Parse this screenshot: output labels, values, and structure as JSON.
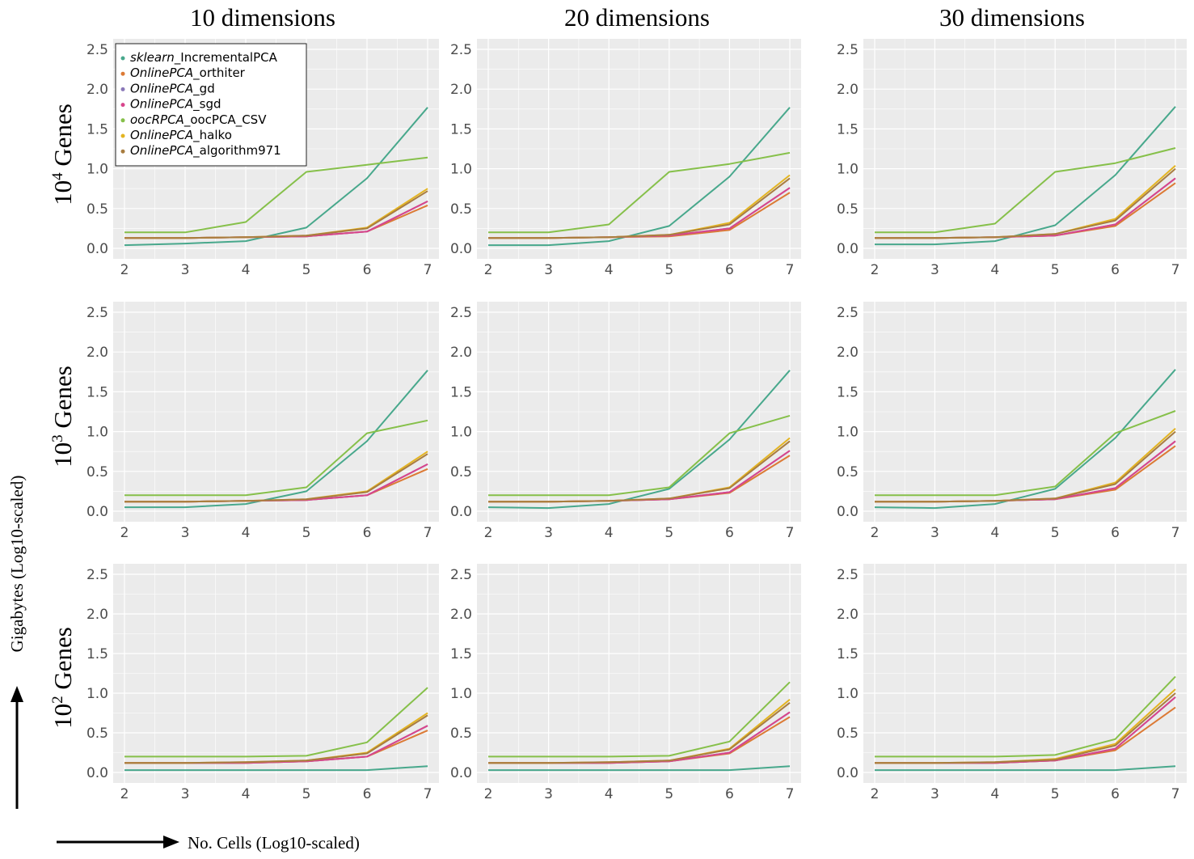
{
  "figure": {
    "col_titles": [
      "10 dimensions",
      "20 dimensions",
      "30 dimensions"
    ],
    "row_titles": [
      {
        "base": "10",
        "exp": "4",
        "rest": " Genes"
      },
      {
        "base": "10",
        "exp": "3",
        "rest": " Genes"
      },
      {
        "base": "10",
        "exp": "2",
        "rest": " Genes"
      }
    ],
    "ylabel": "Gigabytes (Log10-scaled)",
    "xlabel": "No. Cells (Log10-scaled)",
    "panel_bg": "#ebebeb",
    "grid_color": "#ffffff"
  },
  "chart_data": {
    "type": "line",
    "xlabel": "No. Cells (Log10-scaled)",
    "ylabel": "Gigabytes (Log10-scaled)",
    "x": [
      2,
      3,
      4,
      5,
      6,
      7
    ],
    "xticks": [
      "2",
      "3",
      "4",
      "5",
      "6",
      "7"
    ],
    "yticks": [
      "0.0",
      "0.5",
      "1.0",
      "1.5",
      "2.0",
      "2.5"
    ],
    "ylim": [
      0,
      2.5
    ],
    "grid": true,
    "legend_position": "top-left (first panel)",
    "legend": [
      {
        "italic": "sklearn",
        "rest": "_IncrementalPCA",
        "color": "#48a88c"
      },
      {
        "italic": "OnlinePCA",
        "rest": "_orthiter",
        "color": "#dc7a35"
      },
      {
        "italic": "OnlinePCA",
        "rest": "_gd",
        "color": "#8a78b8"
      },
      {
        "italic": "OnlinePCA",
        "rest": "_sgd",
        "color": "#d8458c"
      },
      {
        "italic": "oocRPCA",
        "rest": "_oocPCA_CSV",
        "color": "#86c04a"
      },
      {
        "italic": "OnlinePCA",
        "rest": "_halko",
        "color": "#e3b421"
      },
      {
        "italic": "OnlinePCA",
        "rest": "_algorithm971",
        "color": "#a87d40"
      }
    ],
    "panels": [
      {
        "row": "10^4 Genes",
        "col": "10 dimensions",
        "series": [
          {
            "name": "sklearn_IncrementalPCA",
            "values": [
              0.04,
              0.06,
              0.09,
              0.26,
              0.88,
              1.77
            ]
          },
          {
            "name": "OnlinePCA_orthiter",
            "values": [
              0.13,
              0.13,
              0.14,
              0.15,
              0.21,
              0.54
            ]
          },
          {
            "name": "OnlinePCA_gd",
            "values": [
              0.13,
              0.13,
              0.14,
              0.15,
              0.21,
              0.59
            ]
          },
          {
            "name": "OnlinePCA_sgd",
            "values": [
              0.13,
              0.13,
              0.14,
              0.15,
              0.21,
              0.59
            ]
          },
          {
            "name": "oocRPCA_oocPCA_CSV",
            "values": [
              0.2,
              0.2,
              0.33,
              0.96,
              1.05,
              1.14
            ]
          },
          {
            "name": "OnlinePCA_halko",
            "values": [
              0.13,
              0.13,
              0.14,
              0.16,
              0.26,
              0.75
            ]
          },
          {
            "name": "OnlinePCA_algorithm971",
            "values": [
              0.13,
              0.13,
              0.14,
              0.16,
              0.25,
              0.72
            ]
          }
        ]
      },
      {
        "row": "10^4 Genes",
        "col": "20 dimensions",
        "series": [
          {
            "name": "sklearn_IncrementalPCA",
            "values": [
              0.04,
              0.04,
              0.09,
              0.28,
              0.9,
              1.77
            ]
          },
          {
            "name": "OnlinePCA_orthiter",
            "values": [
              0.13,
              0.13,
              0.14,
              0.15,
              0.23,
              0.7
            ]
          },
          {
            "name": "OnlinePCA_gd",
            "values": [
              0.13,
              0.13,
              0.14,
              0.16,
              0.25,
              0.76
            ]
          },
          {
            "name": "OnlinePCA_sgd",
            "values": [
              0.13,
              0.13,
              0.14,
              0.16,
              0.25,
              0.76
            ]
          },
          {
            "name": "oocRPCA_oocPCA_CSV",
            "values": [
              0.2,
              0.2,
              0.3,
              0.96,
              1.06,
              1.2
            ]
          },
          {
            "name": "OnlinePCA_halko",
            "values": [
              0.13,
              0.13,
              0.14,
              0.17,
              0.32,
              0.92
            ]
          },
          {
            "name": "OnlinePCA_algorithm971",
            "values": [
              0.13,
              0.13,
              0.14,
              0.17,
              0.3,
              0.88
            ]
          }
        ]
      },
      {
        "row": "10^4 Genes",
        "col": "30 dimensions",
        "series": [
          {
            "name": "sklearn_IncrementalPCA",
            "values": [
              0.05,
              0.05,
              0.09,
              0.29,
              0.92,
              1.78
            ]
          },
          {
            "name": "OnlinePCA_orthiter",
            "values": [
              0.13,
              0.13,
              0.14,
              0.16,
              0.28,
              0.82
            ]
          },
          {
            "name": "OnlinePCA_gd",
            "values": [
              0.13,
              0.13,
              0.14,
              0.16,
              0.3,
              0.88
            ]
          },
          {
            "name": "OnlinePCA_sgd",
            "values": [
              0.13,
              0.13,
              0.14,
              0.16,
              0.3,
              0.88
            ]
          },
          {
            "name": "oocRPCA_oocPCA_CSV",
            "values": [
              0.2,
              0.2,
              0.31,
              0.96,
              1.07,
              1.26
            ]
          },
          {
            "name": "OnlinePCA_halko",
            "values": [
              0.13,
              0.13,
              0.14,
              0.18,
              0.37,
              1.04
            ]
          },
          {
            "name": "OnlinePCA_algorithm971",
            "values": [
              0.13,
              0.13,
              0.14,
              0.18,
              0.35,
              1.0
            ]
          }
        ]
      },
      {
        "row": "10^3 Genes",
        "col": "10 dimensions",
        "series": [
          {
            "name": "sklearn_IncrementalPCA",
            "values": [
              0.05,
              0.05,
              0.09,
              0.25,
              0.88,
              1.77
            ]
          },
          {
            "name": "OnlinePCA_orthiter",
            "values": [
              0.12,
              0.12,
              0.13,
              0.14,
              0.2,
              0.53
            ]
          },
          {
            "name": "OnlinePCA_gd",
            "values": [
              0.12,
              0.12,
              0.13,
              0.14,
              0.2,
              0.59
            ]
          },
          {
            "name": "OnlinePCA_sgd",
            "values": [
              0.12,
              0.12,
              0.13,
              0.14,
              0.2,
              0.59
            ]
          },
          {
            "name": "oocRPCA_oocPCA_CSV",
            "values": [
              0.2,
              0.2,
              0.2,
              0.3,
              0.98,
              1.14
            ]
          },
          {
            "name": "OnlinePCA_halko",
            "values": [
              0.12,
              0.12,
              0.13,
              0.15,
              0.25,
              0.75
            ]
          },
          {
            "name": "OnlinePCA_algorithm971",
            "values": [
              0.12,
              0.12,
              0.13,
              0.15,
              0.24,
              0.72
            ]
          }
        ]
      },
      {
        "row": "10^3 Genes",
        "col": "20 dimensions",
        "series": [
          {
            "name": "sklearn_IncrementalPCA",
            "values": [
              0.05,
              0.04,
              0.09,
              0.28,
              0.9,
              1.77
            ]
          },
          {
            "name": "OnlinePCA_orthiter",
            "values": [
              0.12,
              0.12,
              0.13,
              0.15,
              0.23,
              0.7
            ]
          },
          {
            "name": "OnlinePCA_gd",
            "values": [
              0.12,
              0.12,
              0.13,
              0.15,
              0.24,
              0.76
            ]
          },
          {
            "name": "OnlinePCA_sgd",
            "values": [
              0.12,
              0.12,
              0.13,
              0.15,
              0.24,
              0.76
            ]
          },
          {
            "name": "oocRPCA_oocPCA_CSV",
            "values": [
              0.2,
              0.2,
              0.2,
              0.3,
              0.98,
              1.2
            ]
          },
          {
            "name": "OnlinePCA_halko",
            "values": [
              0.12,
              0.12,
              0.13,
              0.16,
              0.3,
              0.92
            ]
          },
          {
            "name": "OnlinePCA_algorithm971",
            "values": [
              0.12,
              0.12,
              0.13,
              0.16,
              0.29,
              0.88
            ]
          }
        ]
      },
      {
        "row": "10^3 Genes",
        "col": "30 dimensions",
        "series": [
          {
            "name": "sklearn_IncrementalPCA",
            "values": [
              0.05,
              0.04,
              0.09,
              0.28,
              0.92,
              1.78
            ]
          },
          {
            "name": "OnlinePCA_orthiter",
            "values": [
              0.12,
              0.12,
              0.13,
              0.15,
              0.27,
              0.82
            ]
          },
          {
            "name": "OnlinePCA_gd",
            "values": [
              0.12,
              0.12,
              0.13,
              0.15,
              0.29,
              0.88
            ]
          },
          {
            "name": "OnlinePCA_sgd",
            "values": [
              0.12,
              0.12,
              0.13,
              0.15,
              0.29,
              0.88
            ]
          },
          {
            "name": "oocRPCA_oocPCA_CSV",
            "values": [
              0.2,
              0.2,
              0.2,
              0.31,
              0.98,
              1.26
            ]
          },
          {
            "name": "OnlinePCA_halko",
            "values": [
              0.12,
              0.12,
              0.13,
              0.16,
              0.36,
              1.04
            ]
          },
          {
            "name": "OnlinePCA_algorithm971",
            "values": [
              0.12,
              0.12,
              0.13,
              0.16,
              0.34,
              1.0
            ]
          }
        ]
      },
      {
        "row": "10^2 Genes",
        "col": "10 dimensions",
        "series": [
          {
            "name": "sklearn_IncrementalPCA",
            "values": [
              0.03,
              0.03,
              0.03,
              0.03,
              0.03,
              0.08
            ]
          },
          {
            "name": "OnlinePCA_orthiter",
            "values": [
              0.12,
              0.12,
              0.12,
              0.14,
              0.2,
              0.53
            ]
          },
          {
            "name": "OnlinePCA_gd",
            "values": [
              0.12,
              0.12,
              0.12,
              0.14,
              0.2,
              0.59
            ]
          },
          {
            "name": "OnlinePCA_sgd",
            "values": [
              0.12,
              0.12,
              0.12,
              0.14,
              0.2,
              0.59
            ]
          },
          {
            "name": "oocRPCA_oocPCA_CSV",
            "values": [
              0.2,
              0.2,
              0.2,
              0.21,
              0.38,
              1.07
            ]
          },
          {
            "name": "OnlinePCA_halko",
            "values": [
              0.12,
              0.12,
              0.13,
              0.15,
              0.25,
              0.75
            ]
          },
          {
            "name": "OnlinePCA_algorithm971",
            "values": [
              0.12,
              0.12,
              0.13,
              0.15,
              0.24,
              0.72
            ]
          }
        ]
      },
      {
        "row": "10^2 Genes",
        "col": "20 dimensions",
        "series": [
          {
            "name": "sklearn_IncrementalPCA",
            "values": [
              0.03,
              0.03,
              0.03,
              0.03,
              0.03,
              0.08
            ]
          },
          {
            "name": "OnlinePCA_orthiter",
            "values": [
              0.12,
              0.12,
              0.12,
              0.14,
              0.24,
              0.7
            ]
          },
          {
            "name": "OnlinePCA_gd",
            "values": [
              0.12,
              0.12,
              0.12,
              0.14,
              0.25,
              0.76
            ]
          },
          {
            "name": "OnlinePCA_sgd",
            "values": [
              0.12,
              0.12,
              0.12,
              0.14,
              0.25,
              0.76
            ]
          },
          {
            "name": "oocRPCA_oocPCA_CSV",
            "values": [
              0.2,
              0.2,
              0.2,
              0.21,
              0.39,
              1.14
            ]
          },
          {
            "name": "OnlinePCA_halko",
            "values": [
              0.12,
              0.12,
              0.13,
              0.15,
              0.3,
              0.92
            ]
          },
          {
            "name": "OnlinePCA_algorithm971",
            "values": [
              0.12,
              0.12,
              0.13,
              0.15,
              0.29,
              0.88
            ]
          }
        ]
      },
      {
        "row": "10^2 Genes",
        "col": "30 dimensions",
        "series": [
          {
            "name": "sklearn_IncrementalPCA",
            "values": [
              0.03,
              0.03,
              0.03,
              0.03,
              0.03,
              0.08
            ]
          },
          {
            "name": "OnlinePCA_orthiter",
            "values": [
              0.12,
              0.12,
              0.12,
              0.15,
              0.28,
              0.82
            ]
          },
          {
            "name": "OnlinePCA_gd",
            "values": [
              0.12,
              0.12,
              0.12,
              0.15,
              0.3,
              0.95
            ]
          },
          {
            "name": "OnlinePCA_sgd",
            "values": [
              0.12,
              0.12,
              0.12,
              0.15,
              0.3,
              0.95
            ]
          },
          {
            "name": "oocRPCA_oocPCA_CSV",
            "values": [
              0.2,
              0.2,
              0.2,
              0.22,
              0.42,
              1.21
            ]
          },
          {
            "name": "OnlinePCA_halko",
            "values": [
              0.12,
              0.12,
              0.13,
              0.17,
              0.36,
              1.05
            ]
          },
          {
            "name": "OnlinePCA_algorithm971",
            "values": [
              0.12,
              0.12,
              0.13,
              0.16,
              0.34,
              1.0
            ]
          }
        ]
      }
    ]
  }
}
